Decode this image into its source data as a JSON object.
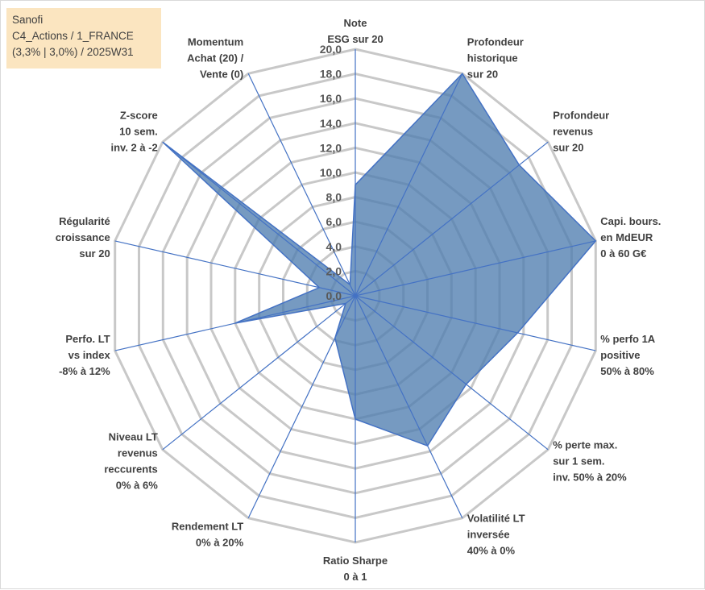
{
  "title": {
    "line1": "Sanofi",
    "line2": "C4_Actions / 1_FRANCE",
    "line3": "(3,3% | 3,0%) / 2025W31"
  },
  "chart_data": {
    "type": "radar",
    "rmax": 20,
    "tick_step": 2,
    "ticks": [
      "0,0",
      "2,0",
      "4,0",
      "6,0",
      "8,0",
      "10,0",
      "12,0",
      "14,0",
      "16,0",
      "18,0",
      "20,0"
    ],
    "grid": true,
    "colors": {
      "series": "#4f7db0",
      "spokes": "#4472c4",
      "grid": "#c8c8c8",
      "title_bg": "#fbe5c0"
    },
    "axes": [
      {
        "lines": [
          "Note",
          "ESG sur 20"
        ],
        "value": 9.0
      },
      {
        "lines": [
          "Profondeur",
          "historique",
          "sur 20"
        ],
        "value": 20.0
      },
      {
        "lines": [
          "Profondeur",
          "revenus",
          "sur 20"
        ],
        "value": 17.0
      },
      {
        "lines": [
          "Capi. bours.",
          "en MdEUR",
          "0 à 60 G€"
        ],
        "value": 20.0
      },
      {
        "lines": [
          "% perfo 1A",
          "positive",
          "50% à 80%"
        ],
        "value": 13.5
      },
      {
        "lines": [
          "% perte max.",
          "sur 1 sem.",
          "inv. 50% à 20%"
        ],
        "value": 11.5
      },
      {
        "lines": [
          "Volatilité LT",
          "inversée",
          "40% à 0%"
        ],
        "value": 13.5
      },
      {
        "lines": [
          "Ratio Sharpe",
          "0 à 1"
        ],
        "value": 10.0
      },
      {
        "lines": [
          "Rendement LT",
          "0% à 20%"
        ],
        "value": 3.8
      },
      {
        "lines": [
          "Niveau LT",
          "revenus",
          "reccurents",
          "0% à 6%"
        ],
        "value": 1.0
      },
      {
        "lines": [
          "Perfo. LT",
          "vs index",
          "-8% à 12%"
        ],
        "value": 10.0
      },
      {
        "lines": [
          "Régularité",
          "croissance",
          "sur 20"
        ],
        "value": 3.0
      },
      {
        "lines": [
          "Z-score",
          "10 sem.",
          "inv. 2 à -2"
        ],
        "value": 20.0
      },
      {
        "lines": [
          "Momentum",
          "Achat (20) /",
          "Vente (0)"
        ],
        "value": 1.0
      }
    ]
  }
}
